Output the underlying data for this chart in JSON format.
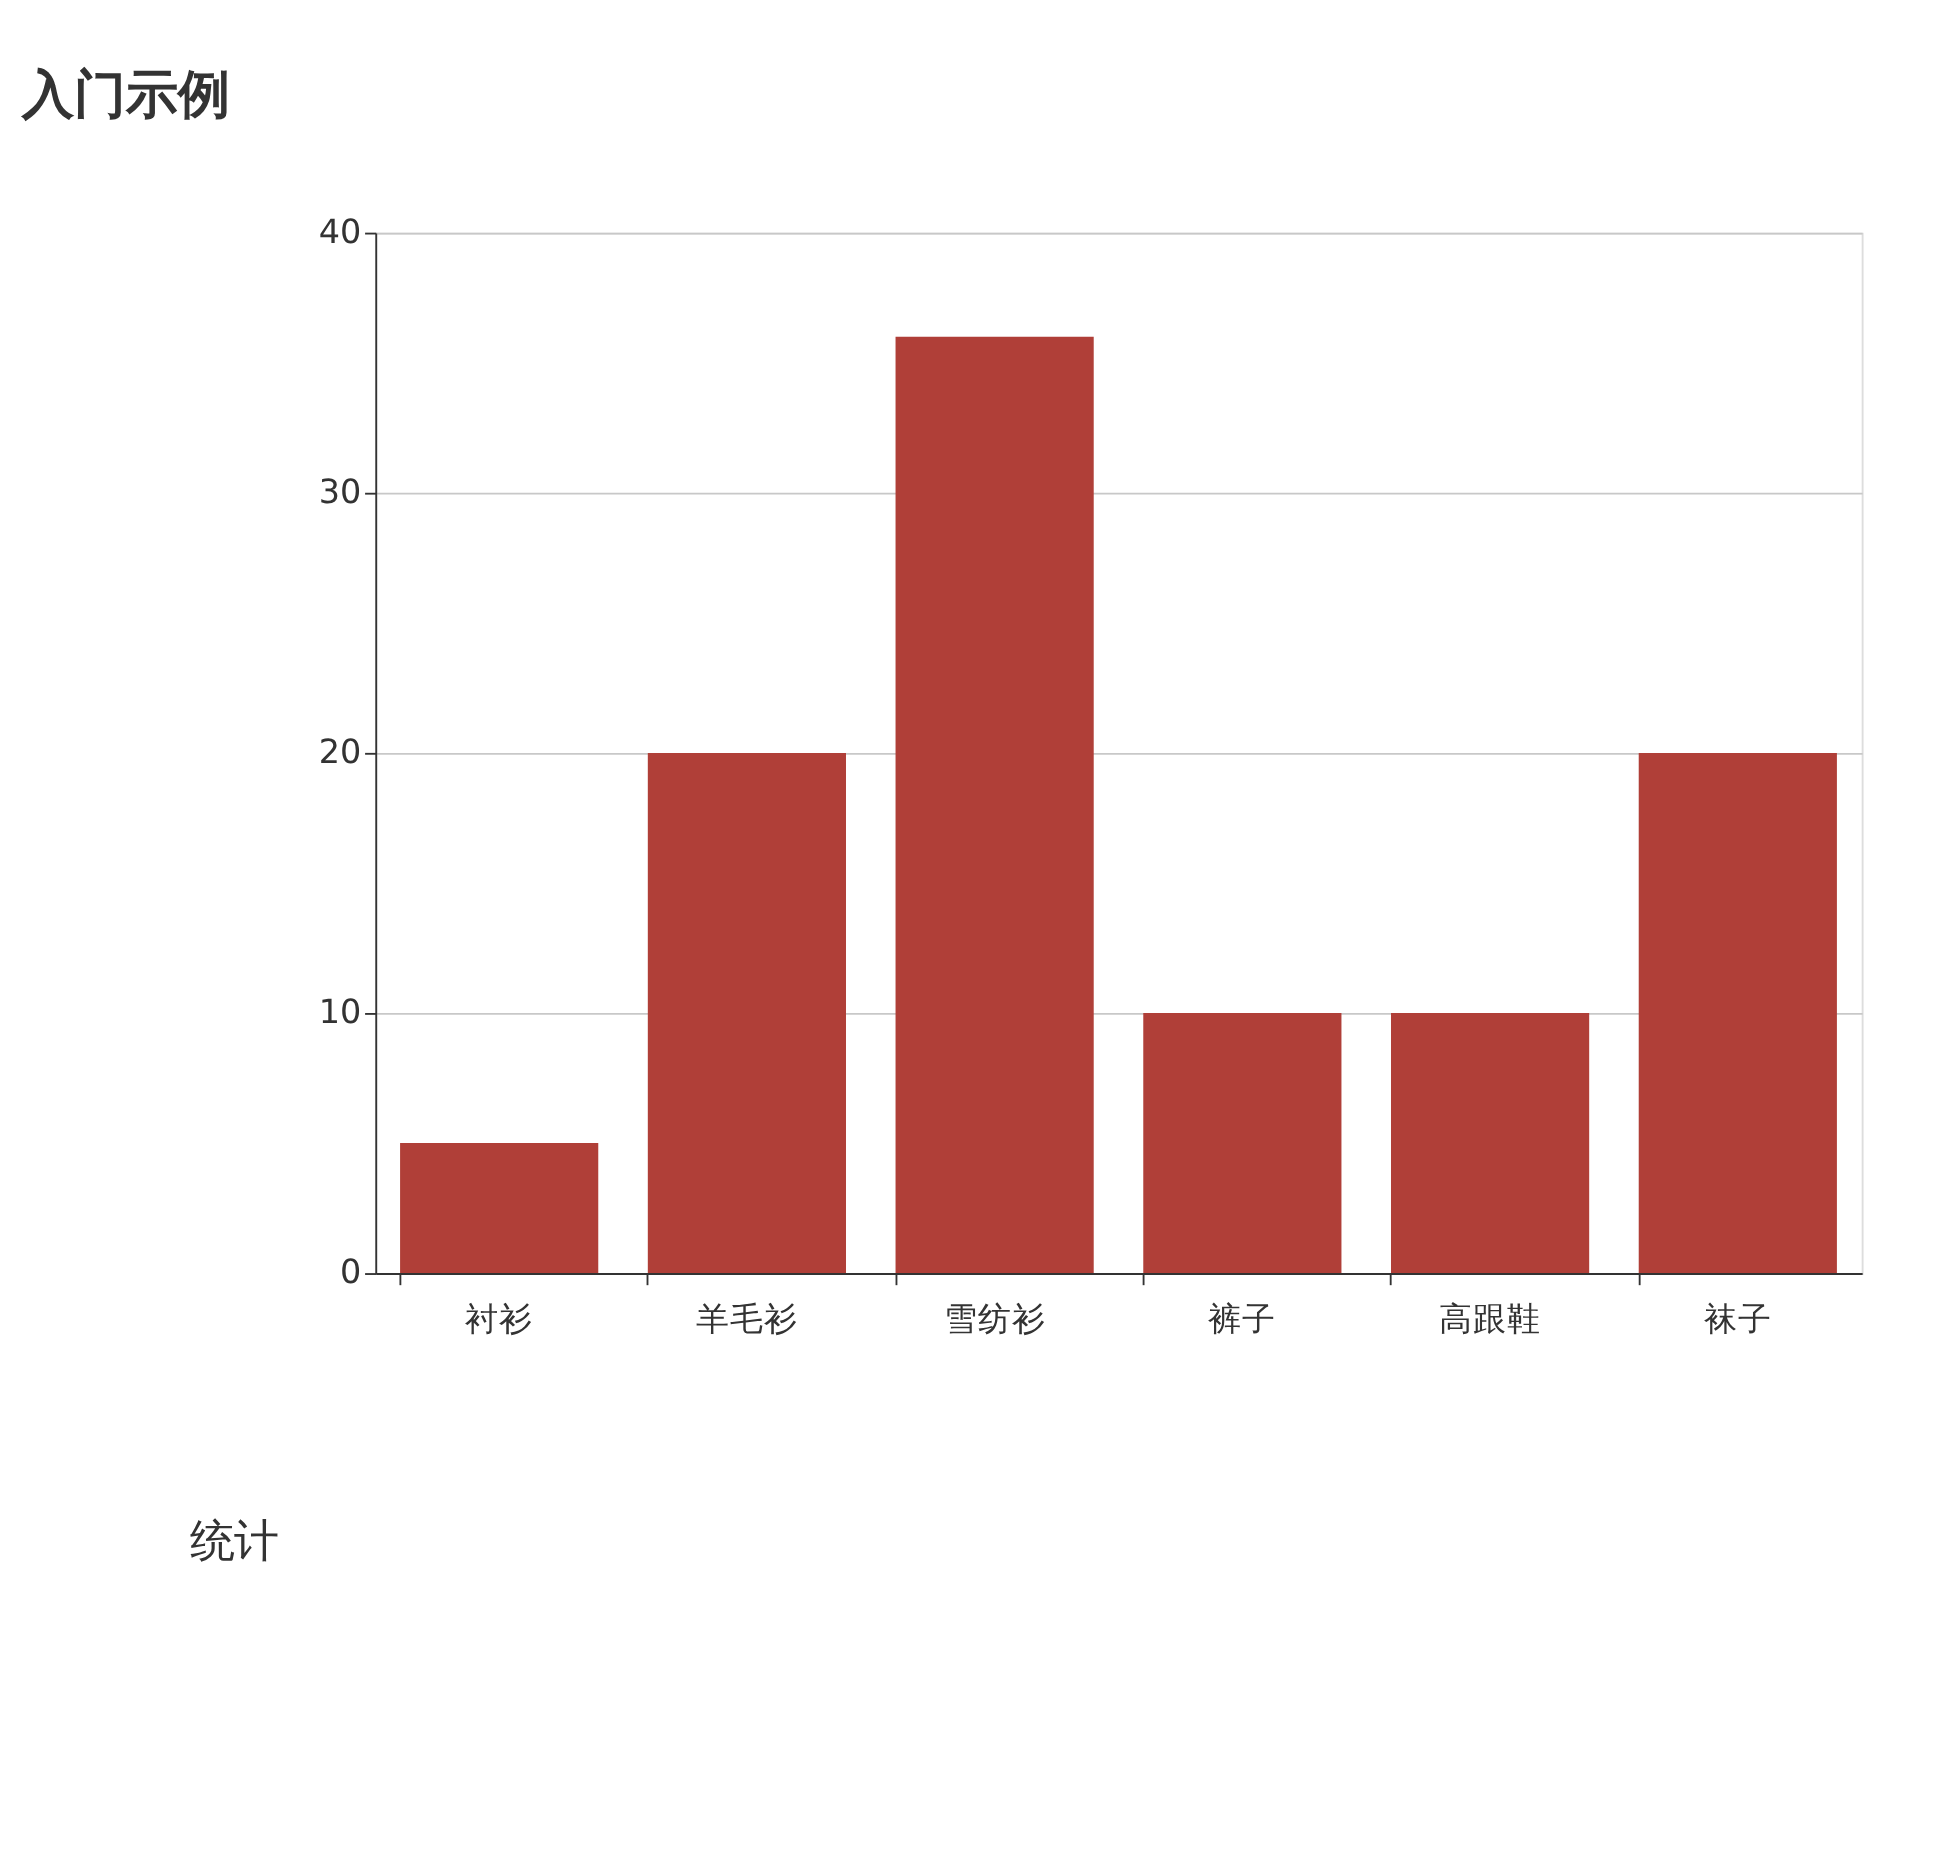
{
  "chart_data": {
    "type": "bar",
    "title": "入门示例",
    "categories": [
      "衬衫",
      "羊毛衫",
      "雪纺衫",
      "裤子",
      "高跟鞋",
      "袜子"
    ],
    "values": [
      5,
      20,
      36,
      10,
      10,
      20
    ],
    "color": "#b03f38",
    "ylim": [
      0,
      40
    ],
    "yticks": [
      0,
      10,
      20,
      30,
      40
    ],
    "grid": "y",
    "annotations": [
      "统计"
    ]
  }
}
